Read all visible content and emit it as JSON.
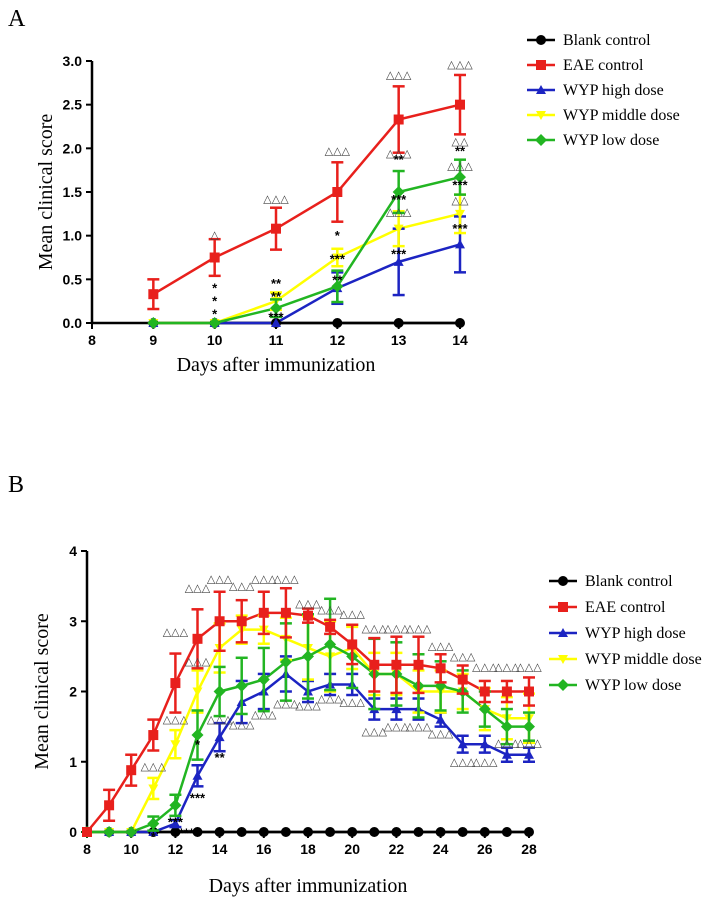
{
  "chart_data": [
    {
      "panel": "A",
      "type": "line",
      "xlabel": "Days after immunization",
      "ylabel": "Mean clinical score",
      "xlim": [
        8,
        14
      ],
      "ylim": [
        0,
        3.0
      ],
      "xticks": [
        8,
        9,
        10,
        11,
        12,
        13,
        14
      ],
      "yticks": [
        0.0,
        0.5,
        1.0,
        1.5,
        2.0,
        2.5,
        3.0
      ],
      "x": [
        9,
        10,
        11,
        12,
        13,
        14
      ],
      "series": [
        {
          "name": "Blank control",
          "color": "#000000",
          "marker": "circle",
          "values": [
            0,
            0,
            0,
            0,
            0,
            0
          ],
          "err": [
            0,
            0,
            0,
            0,
            0,
            0
          ]
        },
        {
          "name": "EAE control",
          "color": "#e8201c",
          "marker": "square",
          "values": [
            0.33,
            0.75,
            1.08,
            1.5,
            2.33,
            2.5
          ],
          "err": [
            0.17,
            0.21,
            0.24,
            0.34,
            0.38,
            0.34
          ]
        },
        {
          "name": "WYP high dose",
          "color": "#1c24c2",
          "marker": "triangle-up",
          "values": [
            0,
            0,
            0,
            0.4,
            0.7,
            0.9
          ],
          "err": [
            0,
            0,
            0,
            0.18,
            0.38,
            0.32
          ]
        },
        {
          "name": "WYP middle dose",
          "color": "#ffff00",
          "marker": "triangle-down",
          "values": [
            0,
            0,
            0.25,
            0.75,
            1.08,
            1.25
          ],
          "err": [
            0,
            0,
            0.1,
            0.1,
            0.2,
            0.22
          ]
        },
        {
          "name": "WYP low dose",
          "color": "#22b522",
          "marker": "diamond",
          "values": [
            0,
            0,
            0.17,
            0.42,
            1.5,
            1.67
          ],
          "err": [
            0,
            0,
            0.1,
            0.18,
            0.24,
            0.2
          ]
        }
      ],
      "annotations": [
        {
          "x": 10,
          "y": 0.97,
          "text": "△"
        },
        {
          "x": 10,
          "y": 0.35,
          "text": "*"
        },
        {
          "x": 10,
          "y": 0.2,
          "text": "*"
        },
        {
          "x": 10,
          "y": 0.05,
          "text": "*"
        },
        {
          "x": 11,
          "y": 1.38,
          "text": "△△△"
        },
        {
          "x": 11,
          "y": 0.4,
          "text": "**"
        },
        {
          "x": 11,
          "y": 0.25,
          "text": "**"
        },
        {
          "x": 11,
          "y": 0.02,
          "text": "***"
        },
        {
          "x": 12,
          "y": 1.93,
          "text": "△△△"
        },
        {
          "x": 12,
          "y": 0.95,
          "text": "*"
        },
        {
          "x": 12,
          "y": 0.68,
          "text": "***"
        },
        {
          "x": 12,
          "y": 0.44,
          "text": "**"
        },
        {
          "x": 13,
          "y": 2.8,
          "text": "△△△"
        },
        {
          "x": 13,
          "y": 1.9,
          "text": "△△△"
        },
        {
          "x": 13,
          "y": 1.82,
          "text": "**"
        },
        {
          "x": 13,
          "y": 1.36,
          "text": "***"
        },
        {
          "x": 13,
          "y": 1.23,
          "text": "△△△"
        },
        {
          "x": 13,
          "y": 0.74,
          "text": "***"
        },
        {
          "x": 14,
          "y": 2.92,
          "text": "△△△"
        },
        {
          "x": 14,
          "y": 2.04,
          "text": "△△"
        },
        {
          "x": 14,
          "y": 1.92,
          "text": "**"
        },
        {
          "x": 14,
          "y": 1.76,
          "text": "△△△"
        },
        {
          "x": 14,
          "y": 1.53,
          "text": "***"
        },
        {
          "x": 14,
          "y": 1.36,
          "text": "△△"
        },
        {
          "x": 14,
          "y": 1.03,
          "text": "***"
        }
      ]
    },
    {
      "panel": "B",
      "type": "line",
      "xlabel": "Days after immunization",
      "ylabel": "Mean clinical score",
      "xlim": [
        8,
        28
      ],
      "ylim": [
        0,
        4
      ],
      "xticks": [
        8,
        10,
        12,
        14,
        16,
        18,
        20,
        22,
        24,
        26,
        28
      ],
      "yticks": [
        0,
        1,
        2,
        3,
        4
      ],
      "x": [
        8,
        9,
        10,
        11,
        12,
        13,
        14,
        15,
        16,
        17,
        18,
        19,
        20,
        21,
        22,
        23,
        24,
        25,
        26,
        27,
        28
      ],
      "series": [
        {
          "name": "Blank control",
          "color": "#000000",
          "marker": "circle",
          "values": [
            0,
            0,
            0,
            0,
            0,
            0,
            0,
            0,
            0,
            0,
            0,
            0,
            0,
            0,
            0,
            0,
            0,
            0,
            0,
            0,
            0
          ],
          "err": [
            0,
            0,
            0,
            0,
            0,
            0,
            0,
            0,
            0,
            0,
            0,
            0,
            0,
            0,
            0,
            0,
            0,
            0,
            0,
            0,
            0
          ]
        },
        {
          "name": "EAE control",
          "color": "#e8201c",
          "marker": "square",
          "values": [
            0,
            0.38,
            0.88,
            1.38,
            2.12,
            2.75,
            3.0,
            3.0,
            3.12,
            3.12,
            3.08,
            2.92,
            2.67,
            2.38,
            2.38,
            2.38,
            2.33,
            2.17,
            2.0,
            2.0,
            2.0
          ],
          "err": [
            0,
            0.22,
            0.22,
            0.22,
            0.42,
            0.42,
            0.42,
            0.3,
            0.3,
            0.35,
            0.1,
            0.1,
            0.28,
            0.38,
            0.4,
            0.4,
            0.2,
            0.2,
            0.15,
            0.15,
            0.2
          ]
        },
        {
          "name": "WYP high dose",
          "color": "#1c24c2",
          "marker": "triangle-up",
          "values": [
            0,
            0,
            0,
            0,
            0.12,
            0.8,
            1.35,
            1.85,
            2.0,
            2.25,
            2.0,
            2.1,
            2.1,
            1.75,
            1.75,
            1.75,
            1.6,
            1.25,
            1.25,
            1.1,
            1.1
          ],
          "err": [
            0,
            0,
            0,
            0,
            0.05,
            0.15,
            0.2,
            0.3,
            0.25,
            0.25,
            0.15,
            0.15,
            0.15,
            0.15,
            0.15,
            0.15,
            0.1,
            0.12,
            0.12,
            0.1,
            0.1
          ]
        },
        {
          "name": "WYP middle dose",
          "color": "#ffff00",
          "marker": "triangle-down",
          "values": [
            0,
            0,
            0,
            0.62,
            1.25,
            2.0,
            2.62,
            2.88,
            2.88,
            2.75,
            2.62,
            2.5,
            2.62,
            2.25,
            2.25,
            2.0,
            2.0,
            2.0,
            1.75,
            1.62,
            1.62
          ],
          "err": [
            0,
            0,
            0,
            0.15,
            0.2,
            0.3,
            0.35,
            0.2,
            0.2,
            0.3,
            0.45,
            0.5,
            0.3,
            0.3,
            0.3,
            0.3,
            0.3,
            0.25,
            0.3,
            0.3,
            0.35
          ]
        },
        {
          "name": "WYP low dose",
          "color": "#22b522",
          "marker": "diamond",
          "values": [
            0,
            0,
            0,
            0.12,
            0.38,
            1.38,
            2.0,
            2.08,
            2.17,
            2.42,
            2.5,
            2.67,
            2.5,
            2.25,
            2.25,
            2.08,
            2.08,
            2.0,
            1.75,
            1.5,
            1.5
          ],
          "err": [
            0,
            0,
            0,
            0.1,
            0.15,
            0.35,
            0.35,
            0.4,
            0.45,
            0.55,
            0.6,
            0.65,
            0.45,
            0.5,
            0.45,
            0.45,
            0.35,
            0.3,
            0.25,
            0.25,
            0.2
          ]
        }
      ],
      "annotations": [
        {
          "x": 11,
          "y": -0.13,
          "text": "*"
        },
        {
          "x": 12,
          "y": 0.08,
          "text": "***"
        },
        {
          "x": 12.5,
          "y": -0.08,
          "text": "***"
        },
        {
          "x": 13,
          "y": 1.18,
          "text": "*"
        },
        {
          "x": 13,
          "y": 0.42,
          "text": "***"
        },
        {
          "x": 14,
          "y": 1.0,
          "text": "**"
        },
        {
          "x": 12,
          "y": 2.8,
          "text": "△△△"
        },
        {
          "x": 13,
          "y": 3.42,
          "text": "△△△"
        },
        {
          "x": 14,
          "y": 3.55,
          "text": "△△△"
        },
        {
          "x": 15,
          "y": 3.45,
          "text": "△△△"
        },
        {
          "x": 16,
          "y": 3.55,
          "text": "△△△"
        },
        {
          "x": 17,
          "y": 3.55,
          "text": "△△△"
        },
        {
          "x": 18,
          "y": 3.2,
          "text": "△△△"
        },
        {
          "x": 19,
          "y": 3.12,
          "text": "△△△"
        },
        {
          "x": 20,
          "y": 3.05,
          "text": "△△△"
        },
        {
          "x": 21,
          "y": 2.85,
          "text": "△△△"
        },
        {
          "x": 22,
          "y": 2.85,
          "text": "△△△"
        },
        {
          "x": 23,
          "y": 2.85,
          "text": "△△△"
        },
        {
          "x": 24,
          "y": 2.6,
          "text": "△△△"
        },
        {
          "x": 25,
          "y": 2.45,
          "text": "△△△"
        },
        {
          "x": 26,
          "y": 2.3,
          "text": "△△△"
        },
        {
          "x": 27,
          "y": 2.3,
          "text": "△△△"
        },
        {
          "x": 28,
          "y": 2.3,
          "text": "△△△"
        },
        {
          "x": 11,
          "y": 0.88,
          "text": "△△△"
        },
        {
          "x": 12,
          "y": 1.55,
          "text": "△△△"
        },
        {
          "x": 13,
          "y": 2.38,
          "text": "△△△"
        },
        {
          "x": 14,
          "y": 1.55,
          "text": "△△△"
        },
        {
          "x": 15,
          "y": 1.48,
          "text": "△△△"
        },
        {
          "x": 16,
          "y": 1.62,
          "text": "△△△"
        },
        {
          "x": 17,
          "y": 1.78,
          "text": "△△△"
        },
        {
          "x": 18,
          "y": 1.75,
          "text": "△△△"
        },
        {
          "x": 19,
          "y": 1.85,
          "text": "△△△"
        },
        {
          "x": 20,
          "y": 1.8,
          "text": "△△△"
        },
        {
          "x": 21,
          "y": 1.38,
          "text": "△△△"
        },
        {
          "x": 22,
          "y": 1.45,
          "text": "△△△"
        },
        {
          "x": 23,
          "y": 1.45,
          "text": "△△△"
        },
        {
          "x": 24,
          "y": 1.35,
          "text": "△△△"
        },
        {
          "x": 25,
          "y": 0.95,
          "text": "△△△"
        },
        {
          "x": 26,
          "y": 0.95,
          "text": "△△△"
        },
        {
          "x": 27,
          "y": 1.22,
          "text": "△△△"
        },
        {
          "x": 28,
          "y": 1.22,
          "text": "△△△"
        }
      ]
    }
  ]
}
